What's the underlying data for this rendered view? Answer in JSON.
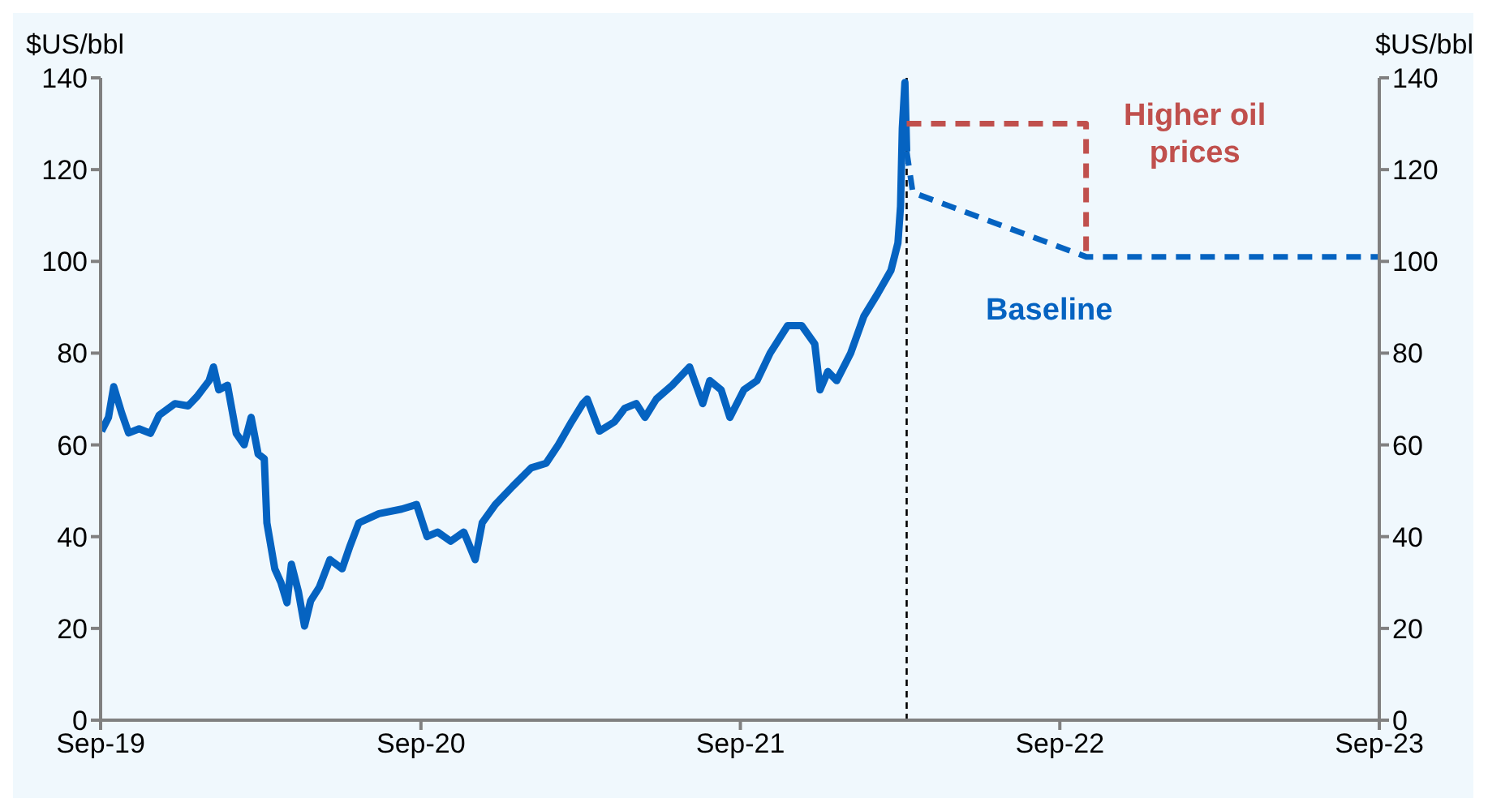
{
  "chart_data": {
    "type": "line",
    "ylabel": "$US/bbl",
    "y2label": "$US/bbl",
    "xlim": [
      "2019-09-01",
      "2023-09-01"
    ],
    "xticks": [
      {
        "value": "2019-09-01",
        "label": "Sep-19"
      },
      {
        "value": "2020-09-01",
        "label": "Sep-20"
      },
      {
        "value": "2021-09-01",
        "label": "Sep-21"
      },
      {
        "value": "2022-09-01",
        "label": "Sep-22"
      },
      {
        "value": "2023-09-01",
        "label": "Sep-23"
      }
    ],
    "ylim": [
      0,
      140
    ],
    "yticks": [
      0,
      20,
      40,
      60,
      80,
      100,
      120,
      140
    ],
    "y2lim": [
      0,
      140
    ],
    "y2ticks": [
      0,
      20,
      40,
      60,
      80,
      100,
      120,
      140
    ],
    "marker": "none",
    "ref_lines": [
      {
        "axis": "x",
        "value": "2022-03-10",
        "color": "#000000",
        "line_style": "dashed"
      }
    ],
    "series": [
      {
        "color": "#0563c1",
        "line_style": "solid",
        "x": [
          "2019-09-02",
          "2019-09-10",
          "2019-09-16",
          "2019-09-25",
          "2019-10-03",
          "2019-10-15",
          "2019-10-28",
          "2019-11-07",
          "2019-11-25",
          "2019-12-10",
          "2019-12-20",
          "2020-01-03",
          "2020-01-08",
          "2020-01-14",
          "2020-01-24",
          "2020-02-03",
          "2020-02-12",
          "2020-02-20",
          "2020-02-28",
          "2020-03-06",
          "2020-03-09",
          "2020-03-18",
          "2020-03-25",
          "2020-04-01",
          "2020-04-06",
          "2020-04-14",
          "2020-04-21",
          "2020-04-28",
          "2020-05-08",
          "2020-05-20",
          "2020-06-03",
          "2020-06-12",
          "2020-06-22",
          "2020-07-15",
          "2020-08-10",
          "2020-08-27",
          "2020-09-08",
          "2020-09-20",
          "2020-10-05",
          "2020-10-20",
          "2020-11-02",
          "2020-11-10",
          "2020-11-25",
          "2020-12-15",
          "2021-01-05",
          "2021-01-22",
          "2021-02-05",
          "2021-02-20",
          "2021-03-05",
          "2021-03-10",
          "2021-03-24",
          "2021-04-10",
          "2021-04-22",
          "2021-05-05",
          "2021-05-15",
          "2021-05-28",
          "2021-06-15",
          "2021-07-05",
          "2021-07-20",
          "2021-07-28",
          "2021-08-10",
          "2021-08-20",
          "2021-09-05",
          "2021-09-20",
          "2021-10-05",
          "2021-10-25",
          "2021-11-10",
          "2021-11-25",
          "2021-12-01",
          "2021-12-10",
          "2021-12-20",
          "2022-01-05",
          "2022-01-20",
          "2022-02-05",
          "2022-02-20",
          "2022-02-28",
          "2022-03-03",
          "2022-03-05",
          "2022-03-08",
          "2022-03-10"
        ],
        "values": [
          63,
          66,
          72.7,
          67,
          62.6,
          63.5,
          62.5,
          66.5,
          69,
          68.5,
          70.5,
          74,
          77,
          72,
          73,
          62.5,
          60,
          66,
          58,
          57,
          43,
          33,
          30,
          25.6,
          34,
          28,
          20.5,
          26,
          29,
          35,
          33,
          38,
          43,
          45,
          46,
          47,
          40,
          41,
          39,
          41,
          35,
          43,
          47,
          51,
          55,
          56,
          60,
          65,
          69,
          70,
          63,
          65,
          68,
          69,
          66,
          70,
          73,
          77,
          69,
          74,
          72,
          66,
          72,
          74,
          80,
          86,
          86,
          82,
          72,
          76,
          74,
          80,
          88,
          93,
          98,
          104,
          112,
          129,
          139,
          124
        ]
      },
      {
        "name": "Baseline",
        "color": "#0563c1",
        "line_style": "dashed",
        "x": [
          "2022-03-10",
          "2022-03-17",
          "2022-10-01",
          "2023-09-01"
        ],
        "values": [
          124,
          115,
          101,
          101
        ]
      },
      {
        "name": "Higher oil prices",
        "color": "#c0504d",
        "line_style": "dashed",
        "x": [
          "2022-03-10",
          "2022-10-01",
          "2022-10-01"
        ],
        "values": [
          130,
          130,
          101
        ]
      }
    ]
  }
}
